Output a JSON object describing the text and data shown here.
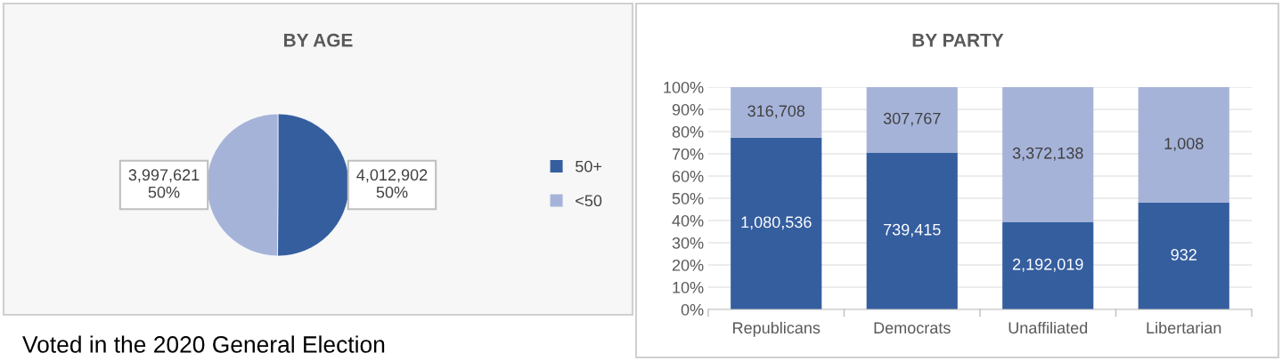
{
  "chart_data": [
    {
      "type": "pie",
      "title": "BY AGE",
      "categories": [
        "50+",
        "<50"
      ],
      "values": [
        4012902,
        3997621
      ],
      "colors": [
        "#355e9f",
        "#a6b3d9"
      ],
      "value_labels": [
        "4,012,902\n50%",
        "3,997,621\n50%"
      ],
      "legend": "right",
      "annotations": [
        "Voted in the 2020 General Election"
      ]
    },
    {
      "type": "bar",
      "title": "BY PARTY",
      "stacked": true,
      "categories": [
        "Republicans",
        "Democrats",
        "Unaffiliated",
        "Libertarian"
      ],
      "series": [
        {
          "color": "#355e9f",
          "values": [
            77.3,
            70.6,
            39.4,
            48.0
          ]
        },
        {
          "color": "#a6b3d9",
          "values": [
            22.7,
            29.4,
            60.6,
            52.0
          ]
        }
      ],
      "annotations": [
        "1,080,536",
        "739,415",
        "2,192,019",
        "932",
        "316,708",
        "307,767",
        "3,372,138",
        "1,008"
      ],
      "ylim": [
        0,
        100
      ],
      "yticks": [
        {
          "value": 0,
          "label": "0%"
        },
        {
          "value": 10,
          "label": "10%"
        },
        {
          "value": 20,
          "label": "20%"
        },
        {
          "value": 30,
          "label": "30%"
        },
        {
          "value": 40,
          "label": "40%"
        },
        {
          "value": 50,
          "label": "50%"
        },
        {
          "value": 60,
          "label": "60%"
        },
        {
          "value": 70,
          "label": "70%"
        },
        {
          "value": 80,
          "label": "80%"
        },
        {
          "value": 90,
          "label": "90%"
        },
        {
          "value": 100,
          "label": "100%"
        }
      ],
      "grid": "y",
      "legend": false
    }
  ]
}
